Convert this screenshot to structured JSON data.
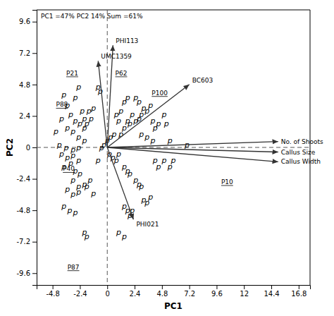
{
  "chart_data": {
    "type": "scatter",
    "subtitle": "PC1 =47%  PC2 14%  Sum =61%",
    "xlabel": "PC1",
    "ylabel": "PC2",
    "xlim": [
      -6.2,
      17.8
    ],
    "ylim": [
      -10.5,
      10.5
    ],
    "xticks": [
      -4.8,
      -2.4,
      0,
      2.4,
      4.8,
      7.2,
      9.6,
      12,
      14.4,
      16.8
    ],
    "yticks": [
      -9.6,
      -7.2,
      -4.8,
      -2.4,
      0,
      2.4,
      4.8,
      7.2,
      9.6
    ],
    "marker": "p",
    "color": "#000000",
    "x": [
      -4.5,
      -3.8,
      -3.5,
      -2.8,
      -2.5,
      -2.2,
      -2.0,
      -1.8,
      -1.6,
      -1.4,
      -1.2,
      -0.8,
      -0.6,
      -4.0,
      -3.2,
      -2.8,
      -2.4,
      -2.0,
      -3.5,
      -3.0,
      -2.5,
      -2.0,
      -4.2,
      -3.6,
      -3.0,
      -2.5,
      -4.0,
      -3.5,
      -3.0,
      -2.5,
      -3.8,
      -3.2,
      -2.8,
      -2.4,
      -3.0,
      -2.5,
      -2.0,
      -3.5,
      -3.0,
      -2.5,
      -3.8,
      -3.3,
      -2.8,
      -1.8,
      -1.5,
      -1.2,
      -2.0,
      -1.8,
      -0.8,
      -0.5,
      -0.3,
      0.2,
      0.5,
      0.8,
      1.0,
      0.0,
      0.3,
      0.6,
      1.2,
      1.5,
      1.8,
      2.0,
      2.2,
      2.5,
      2.8,
      3.0,
      3.2,
      3.5,
      3.8,
      4.0,
      4.2,
      4.5,
      5.0,
      5.2,
      1.5,
      1.8,
      0.8,
      1.0,
      1.2,
      2.5,
      2.8,
      3.0,
      3.5,
      4.0,
      5.5,
      7.0,
      1.5,
      1.8,
      2.0,
      2.5,
      2.8,
      3.0,
      1.5,
      1.8,
      2.0,
      2.2,
      3.2,
      3.5,
      3.8,
      4.2,
      4.5,
      5.0,
      5.5,
      5.8,
      1.0,
      1.5
    ],
    "values": [
      1.2,
      4.0,
      3.2,
      3.8,
      4.6,
      2.8,
      2.2,
      1.8,
      2.8,
      2.2,
      3.0,
      4.6,
      4.3,
      2.2,
      2.5,
      2.0,
      1.8,
      1.5,
      1.5,
      1.2,
      0.8,
      0.5,
      0.2,
      0.0,
      -0.2,
      0.0,
      -0.5,
      -0.8,
      -0.6,
      -1.0,
      -1.5,
      -1.2,
      -1.8,
      -2.0,
      -2.5,
      -3.0,
      -2.8,
      -3.2,
      -3.6,
      -3.4,
      -4.5,
      -4.8,
      -5.0,
      -3.0,
      -2.5,
      -3.5,
      -6.5,
      -6.8,
      -1.0,
      0.0,
      0.2,
      -0.5,
      -0.8,
      -1.0,
      -0.5,
      0.5,
      0.8,
      1.0,
      1.0,
      1.5,
      2.0,
      1.8,
      2.5,
      2.0,
      2.2,
      2.5,
      3.0,
      2.8,
      3.2,
      2.0,
      1.5,
      1.8,
      2.5,
      1.8,
      3.5,
      3.8,
      2.5,
      2.0,
      2.8,
      3.8,
      3.5,
      1.0,
      0.8,
      0.5,
      0.5,
      0.2,
      -1.5,
      -1.8,
      -2.0,
      -2.5,
      -2.8,
      -3.0,
      -4.5,
      -4.8,
      -5.2,
      -4.8,
      -4.0,
      -4.2,
      -3.8,
      -1.0,
      -1.5,
      -1.0,
      -1.5,
      -1.0,
      -6.5,
      -6.8
    ],
    "arrows": [
      {
        "x": 15.0,
        "y": 0.45,
        "label": "No. of Shoots"
      },
      {
        "x": 15.0,
        "y": -0.35,
        "label": "Callus Size"
      },
      {
        "x": 15.0,
        "y": -1.1,
        "label": "Callus Width"
      },
      {
        "x": 7.2,
        "y": 4.8,
        "label": "BC603"
      },
      {
        "x": -0.8,
        "y": 6.6,
        "label": "UMC1359"
      },
      {
        "x": 0.5,
        "y": 7.8,
        "label": "PHI113"
      },
      {
        "x": 2.3,
        "y": -5.5,
        "label": "PHI021"
      }
    ],
    "annotations": [
      {
        "text": "P21",
        "x": -3.6,
        "y": 5.5
      },
      {
        "text": "P88",
        "x": -4.5,
        "y": 3.1
      },
      {
        "text": "P40",
        "x": -3.9,
        "y": -1.8
      },
      {
        "text": "P87",
        "x": -3.5,
        "y": -9.3
      },
      {
        "text": "P62",
        "x": 0.7,
        "y": 5.5
      },
      {
        "text": "P100",
        "x": 3.9,
        "y": 4.0
      },
      {
        "text": "P10",
        "x": 10.0,
        "y": -2.8
      }
    ]
  }
}
